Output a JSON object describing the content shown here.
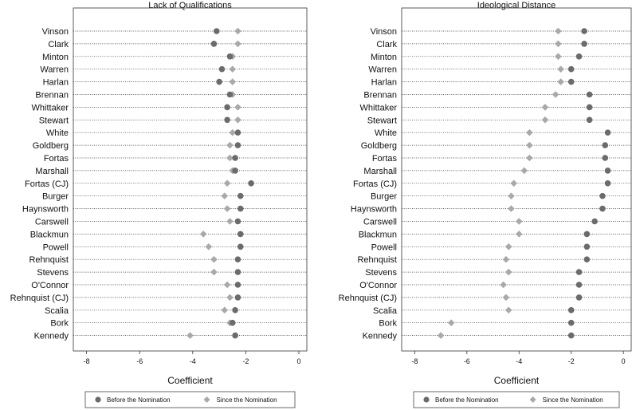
{
  "chart_data": [
    {
      "type": "scatter",
      "title": "Lack of Qualifications",
      "xlabel": "Coefficient",
      "ylabel": "",
      "xlim": [
        -8.5,
        0.3
      ],
      "xticks": [
        -8,
        -6,
        -4,
        -2,
        0
      ],
      "grid": "dotted horizontal lines per category",
      "legend_position": "bottom",
      "categories": [
        "Vinson",
        "Clark",
        "Minton",
        "Warren",
        "Harlan",
        "Brennan",
        "Whittaker",
        "Stewart",
        "White",
        "Goldberg",
        "Fortas",
        "Marshall",
        "Fortas (CJ)",
        "Burger",
        "Haynsworth",
        "Carswell",
        "Blackmun",
        "Powell",
        "Rehnquist",
        "Stevens",
        "O'Connor",
        "Rehnquist (CJ)",
        "Scalia",
        "Bork",
        "Kennedy"
      ],
      "series": [
        {
          "name": "Before the Nomination",
          "marker": "circle",
          "color": "#6b6b6b",
          "values": [
            -3.1,
            -3.2,
            -2.6,
            -2.9,
            -3.0,
            -2.6,
            -2.7,
            -2.7,
            -2.3,
            -2.3,
            -2.4,
            -2.4,
            -1.8,
            -2.2,
            -2.2,
            -2.3,
            -2.2,
            -2.2,
            -2.3,
            -2.3,
            -2.3,
            -2.3,
            -2.4,
            -2.5,
            -2.4
          ]
        },
        {
          "name": "Since the Nomination",
          "marker": "diamond",
          "color": "#a9a9a9",
          "values": [
            -2.3,
            -2.3,
            -2.5,
            -2.5,
            -2.5,
            -2.5,
            -2.3,
            -2.3,
            -2.5,
            -2.6,
            -2.6,
            -2.5,
            -2.7,
            -2.8,
            -2.7,
            -2.6,
            -3.6,
            -3.4,
            -3.2,
            -3.2,
            -2.7,
            -2.6,
            -2.8,
            -2.6,
            -4.1
          ]
        }
      ]
    },
    {
      "type": "scatter",
      "title": "Ideological Distance",
      "xlabel": "Coefficient",
      "ylabel": "",
      "xlim": [
        -8.5,
        0.3
      ],
      "xticks": [
        -8,
        -6,
        -4,
        -2,
        0
      ],
      "grid": "dotted horizontal lines per category",
      "legend_position": "bottom",
      "categories": [
        "Vinson",
        "Clark",
        "Minton",
        "Warren",
        "Harlan",
        "Brennan",
        "Whittaker",
        "Stewart",
        "White",
        "Goldberg",
        "Fortas",
        "Marshall",
        "Fortas (CJ)",
        "Burger",
        "Haynsworth",
        "Carswell",
        "Blackmun",
        "Powell",
        "Rehnquist",
        "Stevens",
        "O'Connor",
        "Rehnquist (CJ)",
        "Scalia",
        "Bork",
        "Kennedy"
      ],
      "series": [
        {
          "name": "Before the Nomination",
          "marker": "circle",
          "color": "#6b6b6b",
          "values": [
            -1.5,
            -1.5,
            -1.7,
            -2.0,
            -2.0,
            -1.3,
            -1.3,
            -1.3,
            -0.6,
            -0.7,
            -0.7,
            -0.6,
            -0.6,
            -0.8,
            -0.8,
            -1.1,
            -1.4,
            -1.4,
            -1.4,
            -1.7,
            -1.7,
            -1.7,
            -2.0,
            -2.0,
            -2.0
          ]
        },
        {
          "name": "Since the Nomination",
          "marker": "diamond",
          "color": "#a9a9a9",
          "values": [
            -2.5,
            -2.5,
            -2.5,
            -2.4,
            -2.4,
            -2.6,
            -3.0,
            -3.0,
            -3.6,
            -3.6,
            -3.6,
            -3.8,
            -4.2,
            -4.3,
            -4.3,
            -4.0,
            -4.0,
            -4.4,
            -4.5,
            -4.4,
            -4.6,
            -4.5,
            -4.4,
            -6.6,
            -7.0
          ]
        }
      ]
    }
  ]
}
